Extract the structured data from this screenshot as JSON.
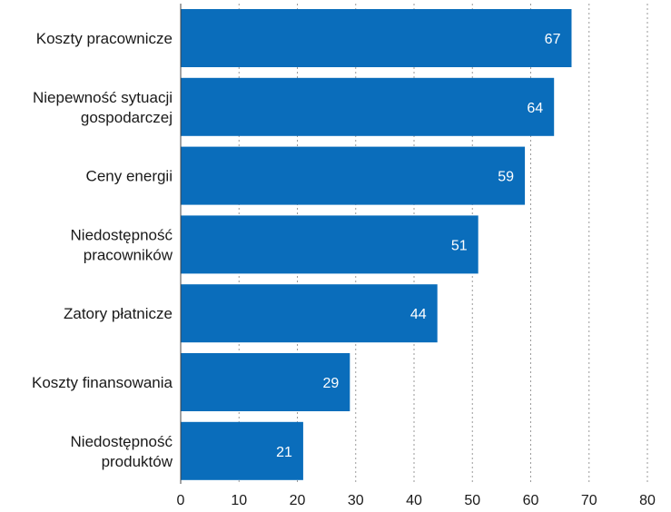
{
  "chart_data": {
    "type": "bar",
    "orientation": "horizontal",
    "categories": [
      [
        "Koszty pracownicze"
      ],
      [
        "Niepewność sytuacji",
        "gospodarczej"
      ],
      [
        "Ceny energii"
      ],
      [
        "Niedostępność",
        "pracowników"
      ],
      [
        "Zatory płatnicze"
      ],
      [
        "Koszty finansowania"
      ],
      [
        "Niedostępność",
        "produktów"
      ]
    ],
    "values": [
      67,
      64,
      59,
      51,
      44,
      29,
      21
    ],
    "xlim": [
      0,
      80
    ],
    "xticks": [
      "0",
      "10",
      "20",
      "30",
      "40",
      "50",
      "60",
      "70",
      "80"
    ],
    "grid": true,
    "bar_color": "#0a6dbb",
    "label_color": "#ffffff",
    "title": "",
    "xlabel": "",
    "ylabel": ""
  }
}
